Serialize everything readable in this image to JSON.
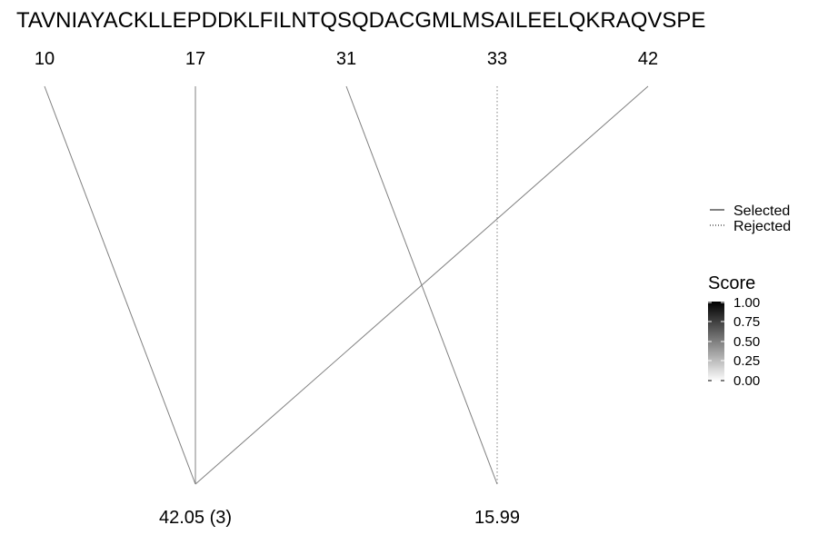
{
  "sequence": "TAVNIAYACKLLEPDDKLFILNTQSQDACGMLMSAILEELQKRAQVSPE",
  "positions": [
    "10",
    "17",
    "31",
    "33",
    "42"
  ],
  "scores": [
    "42.05 (3)",
    "15.99"
  ],
  "links": [
    {
      "from": "10",
      "to": "42.05 (3)",
      "status": "Selected"
    },
    {
      "from": "17",
      "to": "42.05 (3)",
      "status": "Selected"
    },
    {
      "from": "42",
      "to": "42.05 (3)",
      "status": "Selected"
    },
    {
      "from": "31",
      "to": "15.99",
      "status": "Selected"
    },
    {
      "from": "33",
      "to": "15.99",
      "status": "Rejected"
    }
  ],
  "legend": {
    "selected_label": "Selected",
    "rejected_label": "Rejected"
  },
  "score_scale": {
    "title": "Score",
    "ticks": [
      "1.00",
      "0.75",
      "0.50",
      "0.25",
      "0.00"
    ],
    "color_high": "#000000",
    "color_low": "#ffffff"
  },
  "colors": {
    "line": "#808080",
    "text": "#000000"
  }
}
